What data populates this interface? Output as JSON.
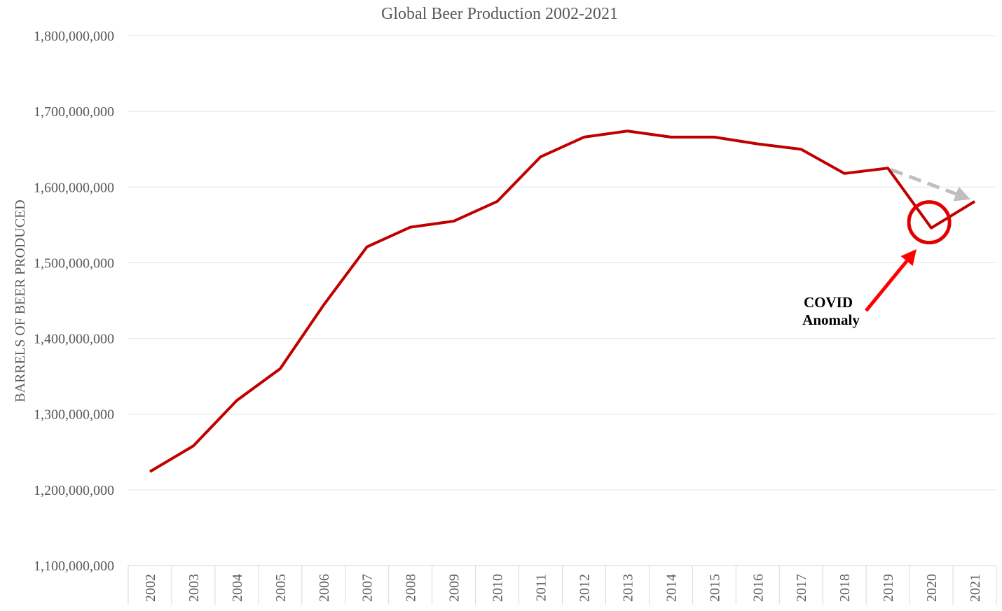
{
  "chart_data": {
    "type": "line",
    "title": "Global Beer Production 2002-2021",
    "xlabel": "",
    "ylabel": "BARRELS OF BEER PRODUCED",
    "categories": [
      "2002",
      "2003",
      "2004",
      "2005",
      "2006",
      "2007",
      "2008",
      "2009",
      "2010",
      "2011",
      "2012",
      "2013",
      "2014",
      "2015",
      "2016",
      "2017",
      "2018",
      "2019",
      "2020",
      "2021"
    ],
    "series": [
      {
        "values": [
          1224000000,
          1258000000,
          1318000000,
          1360000000,
          1444000000,
          1521000000,
          1547000000,
          1555000000,
          1581000000,
          1640000000,
          1666000000,
          1674000000,
          1666000000,
          1666000000,
          1657000000,
          1650000000,
          1618000000,
          1625000000,
          1546000000,
          1581000000
        ]
      }
    ],
    "yticks": [
      1100000000,
      1200000000,
      1300000000,
      1400000000,
      1500000000,
      1600000000,
      1700000000,
      1800000000
    ],
    "ytick_labels": [
      "1,100,000,000",
      "1,200,000,000",
      "1,300,000,000",
      "1,400,000,000",
      "1,500,000,000",
      "1,600,000,000",
      "1,700,000,000",
      "1,800,000,000"
    ],
    "ylim": [
      1100000000,
      1800000000
    ],
    "grid": true,
    "line_color": "#C00000",
    "annotations": {
      "anomaly_label_line1": "COVID",
      "anomaly_label_line2": "Anomaly",
      "anomaly_category": "2020",
      "trend_arrow_from": "2019",
      "trend_arrow_to": "2021",
      "circle_color": "#E00000",
      "arrow_color": "#FF0000",
      "trend_color": "#BFBFBF"
    }
  }
}
